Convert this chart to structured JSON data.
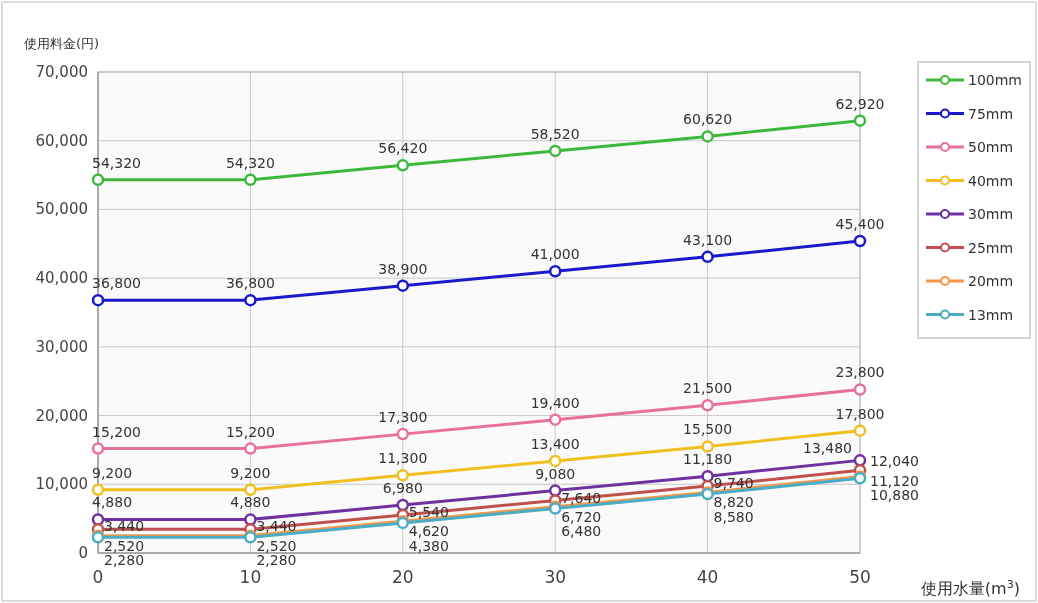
{
  "chart_data": {
    "type": "line",
    "xlabel": "使用水量(m$^{3}$)",
    "ylabel": "使用料金(円)",
    "x": [
      0,
      10,
      20,
      30,
      40,
      50
    ],
    "xlim": [
      0,
      50
    ],
    "xticks": [
      0,
      10,
      20,
      30,
      40,
      50
    ],
    "ylim": [
      0,
      70000
    ],
    "yticks": [
      {
        "value": 0,
        "label": "0"
      },
      {
        "value": 10000,
        "label": "10,000"
      },
      {
        "value": 20000,
        "label": "20,000"
      },
      {
        "value": 30000,
        "label": "30,000"
      },
      {
        "value": 40000,
        "label": "40,000"
      },
      {
        "value": 50000,
        "label": "50,000"
      },
      {
        "value": 60000,
        "label": "60,000"
      },
      {
        "value": 70000,
        "label": "70,000"
      }
    ],
    "grid": true,
    "legend": "right",
    "marker": "circle",
    "series": [
      {
        "name": "100mm",
        "color": "#3cb93c",
        "values": [
          54320,
          54320,
          56420,
          58520,
          60620,
          62920
        ],
        "value_labels": [
          "54,320",
          "54,320",
          "56,420",
          "58,520",
          "60,620",
          "62,920"
        ]
      },
      {
        "name": "75mm",
        "color": "#1a1acc",
        "values": [
          36800,
          36800,
          38900,
          41000,
          43100,
          45400
        ],
        "value_labels": [
          "36,800",
          "36,800",
          "38,900",
          "41,000",
          "43,100",
          "45,400"
        ]
      },
      {
        "name": "50mm",
        "color": "#e8709a",
        "values": [
          15200,
          15200,
          17300,
          19400,
          21500,
          23800
        ],
        "value_labels": [
          "15,200",
          "15,200",
          "17,300",
          "19,400",
          "21,500",
          "23,800"
        ]
      },
      {
        "name": "40mm",
        "color": "#f0c020",
        "values": [
          9200,
          9200,
          11300,
          13400,
          15500,
          17800
        ],
        "value_labels": [
          "9,200",
          "9,200",
          "11,300",
          "13,400",
          "15,500",
          "17,800"
        ]
      },
      {
        "name": "30mm",
        "color": "#7030a0",
        "values": [
          4880,
          4880,
          6980,
          9080,
          11180,
          13480
        ],
        "value_labels": [
          "4,880",
          "4,880",
          "6,980",
          "9,080",
          "11,180",
          "13,480"
        ]
      },
      {
        "name": "25mm",
        "color": "#c0504d",
        "values": [
          3440,
          3440,
          5540,
          7640,
          9740,
          12040
        ],
        "value_labels": [
          "3,440",
          "3,440",
          "5,540",
          "7,640",
          "9,740",
          "12,040"
        ]
      },
      {
        "name": "20mm",
        "color": "#f79646",
        "values": [
          2520,
          2520,
          4620,
          6720,
          8820,
          11120
        ],
        "value_labels": [
          "2,520",
          "2,520",
          "4,620",
          "6,720",
          "8,820",
          "11,120"
        ]
      },
      {
        "name": "13mm",
        "color": "#4bacc6",
        "values": [
          2280,
          2280,
          4380,
          6480,
          8580,
          10880
        ],
        "value_labels": [
          "2,280",
          "2,280",
          "4,380",
          "6,480",
          "8,580",
          "10,880"
        ]
      }
    ]
  }
}
